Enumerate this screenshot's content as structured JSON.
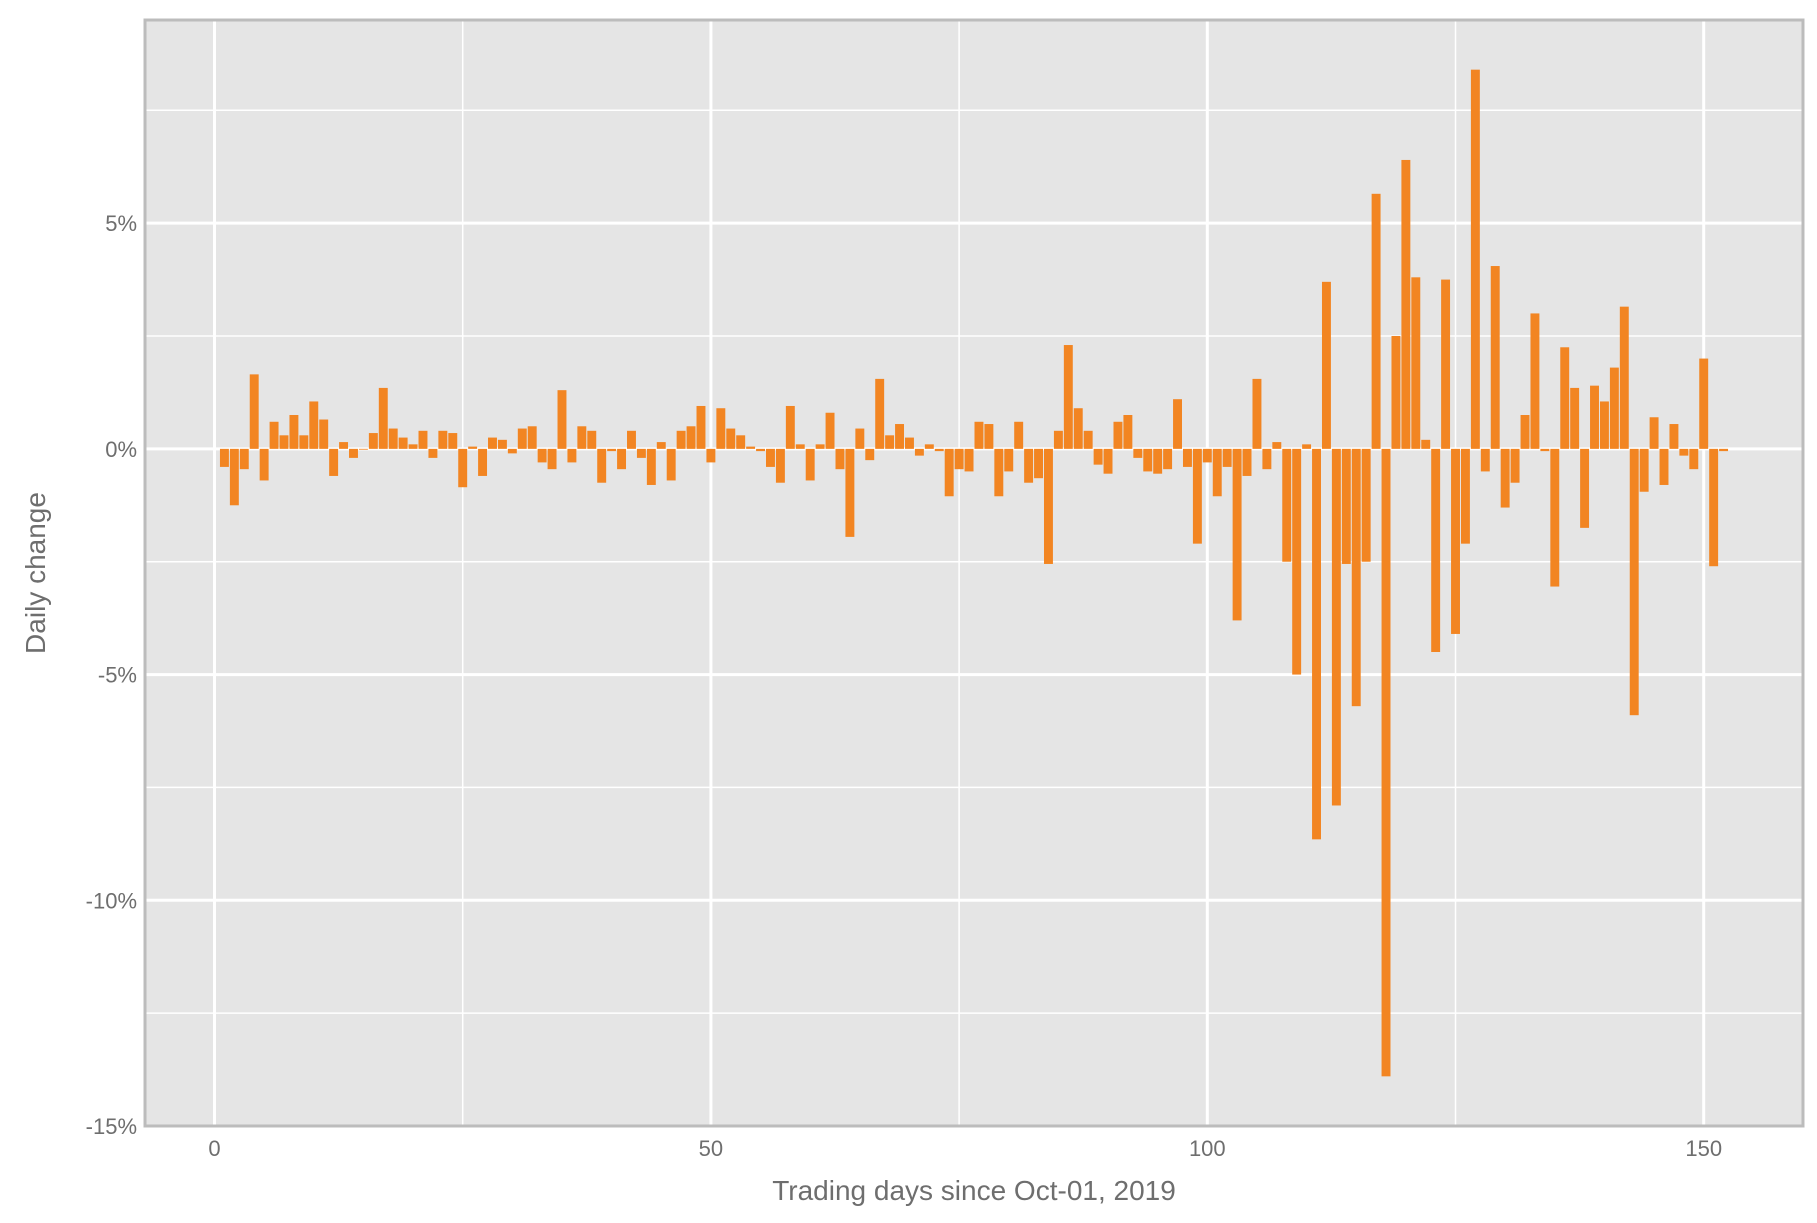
{
  "chart_data": {
    "type": "bar",
    "xlabel": "Trading days since Oct-01, 2019",
    "ylabel": "Daily change",
    "xlim": [
      -7,
      160
    ],
    "ylim": [
      -15,
      9.5
    ],
    "x_ticks": [
      0,
      50,
      100,
      150
    ],
    "x_tick_labels": [
      "0",
      "50",
      "100",
      "150"
    ],
    "x_minor_ticks": [
      25,
      75,
      125
    ],
    "y_ticks": [
      -15,
      -10,
      -5,
      0,
      5
    ],
    "y_tick_labels": [
      "-15%",
      "-10%",
      "-5%",
      "0%",
      "5%"
    ],
    "y_minor_ticks": [
      -12.5,
      -7.5,
      -2.5,
      2.5,
      7.5
    ],
    "grid": true,
    "background_color": "#e5e5e5",
    "bar_color": "#f28522",
    "frame_color": "#bcbcbc",
    "x": [
      1,
      2,
      3,
      4,
      5,
      6,
      7,
      8,
      9,
      10,
      11,
      12,
      13,
      14,
      15,
      16,
      17,
      18,
      19,
      20,
      21,
      22,
      23,
      24,
      25,
      26,
      27,
      28,
      29,
      30,
      31,
      32,
      33,
      34,
      35,
      36,
      37,
      38,
      39,
      40,
      41,
      42,
      43,
      44,
      45,
      46,
      47,
      48,
      49,
      50,
      51,
      52,
      53,
      54,
      55,
      56,
      57,
      58,
      59,
      60,
      61,
      62,
      63,
      64,
      65,
      66,
      67,
      68,
      69,
      70,
      71,
      72,
      73,
      74,
      75,
      76,
      77,
      78,
      79,
      80,
      81,
      82,
      83,
      84,
      85,
      86,
      87,
      88,
      89,
      90,
      91,
      92,
      93,
      94,
      95,
      96,
      97,
      98,
      99,
      100,
      101,
      102,
      103,
      104,
      105,
      106,
      107,
      108,
      109,
      110,
      111,
      112,
      113,
      114,
      115,
      116,
      117,
      118,
      119,
      120,
      121,
      122,
      123,
      124,
      125,
      126,
      127,
      128,
      129,
      130,
      131,
      132,
      133,
      134,
      135,
      136,
      137,
      138,
      139,
      140,
      141,
      142,
      143,
      144,
      145,
      146,
      147,
      148,
      149,
      150,
      151,
      152
    ],
    "values": [
      -0.4,
      -1.25,
      -0.45,
      1.65,
      -0.7,
      0.6,
      0.3,
      0.75,
      0.3,
      1.05,
      0.65,
      -0.6,
      0.15,
      -0.2,
      0,
      0.35,
      1.35,
      0.45,
      0.25,
      0.1,
      0.4,
      -0.2,
      0.4,
      0.35,
      -0.85,
      0.05,
      -0.6,
      0.25,
      0.2,
      -0.1,
      0.45,
      0.5,
      -0.3,
      -0.45,
      1.3,
      -0.3,
      0.5,
      0.4,
      -0.75,
      -0.05,
      -0.45,
      0.4,
      -0.2,
      -0.8,
      0.15,
      -0.7,
      0.4,
      0.5,
      0.95,
      -0.3,
      0.9,
      0.45,
      0.3,
      0.05,
      -0.05,
      -0.4,
      -0.75,
      0.95,
      0.1,
      -0.7,
      0.1,
      0.8,
      -0.45,
      -1.95,
      0.45,
      -0.25,
      1.55,
      0.3,
      0.55,
      0.25,
      -0.15,
      0.1,
      -0.05,
      -1.05,
      -0.45,
      -0.5,
      0.6,
      0.55,
      -1.05,
      -0.5,
      0.6,
      -0.75,
      -0.65,
      -2.55,
      0.4,
      2.3,
      0.9,
      0.4,
      -0.35,
      -0.55,
      0.6,
      0.75,
      -0.2,
      -0.5,
      -0.55,
      -0.45,
      1.1,
      -0.4,
      -2.1,
      -0.3,
      -1.05,
      -0.4,
      -3.8,
      -0.6,
      1.55,
      -0.45,
      0.15,
      -2.5,
      -5.0,
      0.1,
      -8.65,
      3.7,
      -7.9,
      -2.55,
      -5.7,
      -2.5,
      5.65,
      -13.9,
      2.5,
      6.4,
      3.8,
      0.2,
      -4.5,
      3.75,
      -4.1,
      -2.1,
      8.4,
      -0.5,
      4.05,
      -1.3,
      -0.75,
      0.75,
      3.0,
      -0.05,
      -3.05,
      2.25,
      1.35,
      -1.75,
      1.4,
      1.05,
      1.8,
      3.15,
      -5.9,
      -0.95,
      0.7,
      -0.8,
      0.55,
      -0.15,
      -0.45,
      2.0,
      -2.6,
      -0.05
    ]
  }
}
